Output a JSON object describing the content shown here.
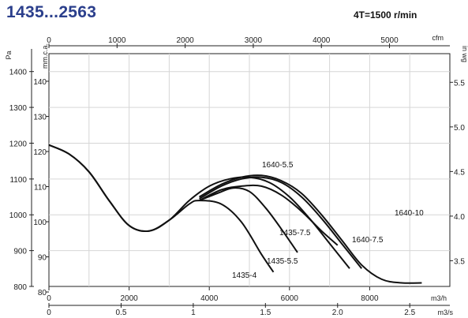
{
  "header": {
    "title": "1435...2563",
    "speed": "4T=1500 r/min"
  },
  "chart_data": {
    "type": "line",
    "title": "1435...2563",
    "subtitle": "4T=1500 r/min",
    "grid": true,
    "axes": {
      "x_bottom": {
        "unit": "m3/h",
        "range": [
          0,
          10000
        ],
        "ticks": [
          {
            "v": 0,
            "label": "0"
          },
          {
            "v": 2000,
            "label": "2000"
          },
          {
            "v": 4000,
            "label": "4000"
          },
          {
            "v": 6000,
            "label": "6000"
          },
          {
            "v": 8000,
            "label": "8000"
          }
        ]
      },
      "x_bottom2": {
        "unit": "m3/s",
        "ticks": [
          {
            "v": 0,
            "label": "0"
          },
          {
            "v": 0.5,
            "label": "0.5"
          },
          {
            "v": 1,
            "label": "1"
          },
          {
            "v": 1.5,
            "label": "1.5"
          },
          {
            "v": 2,
            "label": "2.0"
          },
          {
            "v": 2.5,
            "label": "2.5"
          }
        ]
      },
      "x_top": {
        "unit": "cfm",
        "ticks": [
          {
            "v": 0,
            "label": "0"
          },
          {
            "v": 1000,
            "label": "1000"
          },
          {
            "v": 2000,
            "label": "2000"
          },
          {
            "v": 3000,
            "label": "3000"
          },
          {
            "v": 4000,
            "label": "4000"
          },
          {
            "v": 5000,
            "label": "5000"
          }
        ]
      },
      "y_left": {
        "unit": "Pa",
        "range": [
          800,
          1450
        ],
        "ticks": [
          {
            "v": 800,
            "label": "800"
          },
          {
            "v": 900,
            "label": "900"
          },
          {
            "v": 1000,
            "label": "1000"
          },
          {
            "v": 1100,
            "label": "1100"
          },
          {
            "v": 1200,
            "label": "1200"
          },
          {
            "v": 1300,
            "label": "1300"
          },
          {
            "v": 1400,
            "label": "1400"
          }
        ]
      },
      "y_left2": {
        "unit": "mm.c.a.",
        "ticks": [
          {
            "v": 80,
            "label": "80"
          },
          {
            "v": 90,
            "label": "90"
          },
          {
            "v": 100,
            "label": "100"
          },
          {
            "v": 110,
            "label": "110"
          },
          {
            "v": 120,
            "label": "120"
          },
          {
            "v": 130,
            "label": "130"
          },
          {
            "v": 140,
            "label": "140"
          }
        ]
      },
      "y_right": {
        "unit": "in wg",
        "ticks": [
          {
            "v": 3.5,
            "label": "3.5"
          },
          {
            "v": 4.0,
            "label": "4.0"
          },
          {
            "v": 4.5,
            "label": "4.5"
          },
          {
            "v": 5.0,
            "label": "5.0"
          },
          {
            "v": 5.5,
            "label": "5.5"
          }
        ]
      }
    },
    "series": [
      {
        "name": "1435-4",
        "x": [
          0,
          500,
          1000,
          1500,
          2000,
          2500,
          3000,
          3500,
          3750,
          4300,
          4800,
          5300,
          5600
        ],
        "y": [
          1195,
          1170,
          1120,
          1040,
          970,
          955,
          985,
          1030,
          1040,
          1030,
          980,
          890,
          840
        ]
      },
      {
        "name": "1435-5.5",
        "x": [
          3750,
          4200,
          4600,
          5000,
          5400,
          5800,
          6200
        ],
        "y": [
          1040,
          1060,
          1075,
          1065,
          1020,
          960,
          895
        ]
      },
      {
        "name": "1435-7.5",
        "x": [
          3750,
          4300,
          4800,
          5300,
          5800,
          6300,
          6800,
          7200
        ],
        "y": [
          1040,
          1070,
          1080,
          1080,
          1055,
          1010,
          955,
          915
        ]
      },
      {
        "name": "1640-5.5",
        "x": [
          0,
          500,
          1000,
          1500,
          2000,
          2500,
          3000,
          3500,
          4000,
          4500,
          5000,
          5500,
          6000,
          6500,
          7000,
          7500
        ],
        "y": [
          1195,
          1170,
          1120,
          1040,
          970,
          955,
          985,
          1040,
          1080,
          1100,
          1105,
          1090,
          1050,
          990,
          920,
          850
        ]
      },
      {
        "name": "1640-7.5",
        "x": [
          3750,
          4300,
          4800,
          5300,
          5800,
          6300,
          6800,
          7300,
          7800
        ],
        "y": [
          1045,
          1080,
          1100,
          1105,
          1090,
          1050,
          990,
          920,
          850
        ]
      },
      {
        "name": "1640-10",
        "x": [
          3750,
          4300,
          4800,
          5300,
          5800,
          6300,
          6800,
          7300,
          7800,
          8300,
          8800,
          9300
        ],
        "y": [
          1050,
          1085,
          1105,
          1110,
          1095,
          1060,
          1000,
          930,
          860,
          820,
          810,
          810
        ]
      }
    ]
  }
}
